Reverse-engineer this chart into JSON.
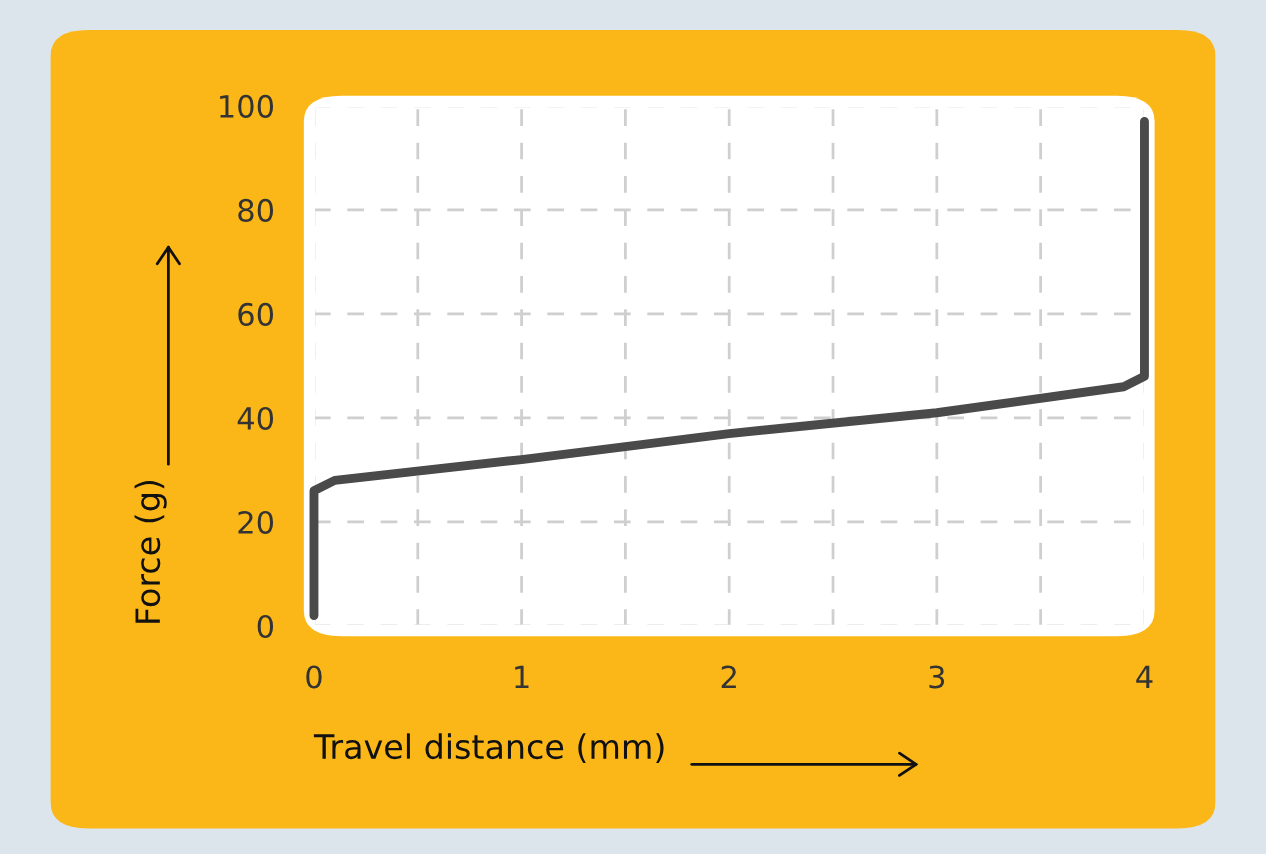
{
  "chart_data": {
    "type": "line",
    "xlabel": "Travel distance (mm)",
    "ylabel": "Force (g)",
    "x": [
      0,
      0,
      0.1,
      1,
      2,
      3,
      3.9,
      4,
      4
    ],
    "series": [
      {
        "color": "#4a4a4a",
        "values": [
          2,
          26,
          28,
          32,
          37,
          41,
          46,
          48,
          97
        ]
      }
    ],
    "xlim": [
      0,
      4
    ],
    "ylim": [
      0,
      100
    ],
    "xticks": [
      0,
      {
        "value": 0.5,
        "label": null
      },
      1,
      {
        "value": 1.5,
        "label": null
      },
      2,
      {
        "value": 2.5,
        "label": null
      },
      3,
      {
        "value": 3.5,
        "label": null
      },
      4
    ],
    "yticks": [
      0,
      20,
      40,
      60,
      80,
      100
    ],
    "grid": true,
    "line_style": "solid"
  }
}
